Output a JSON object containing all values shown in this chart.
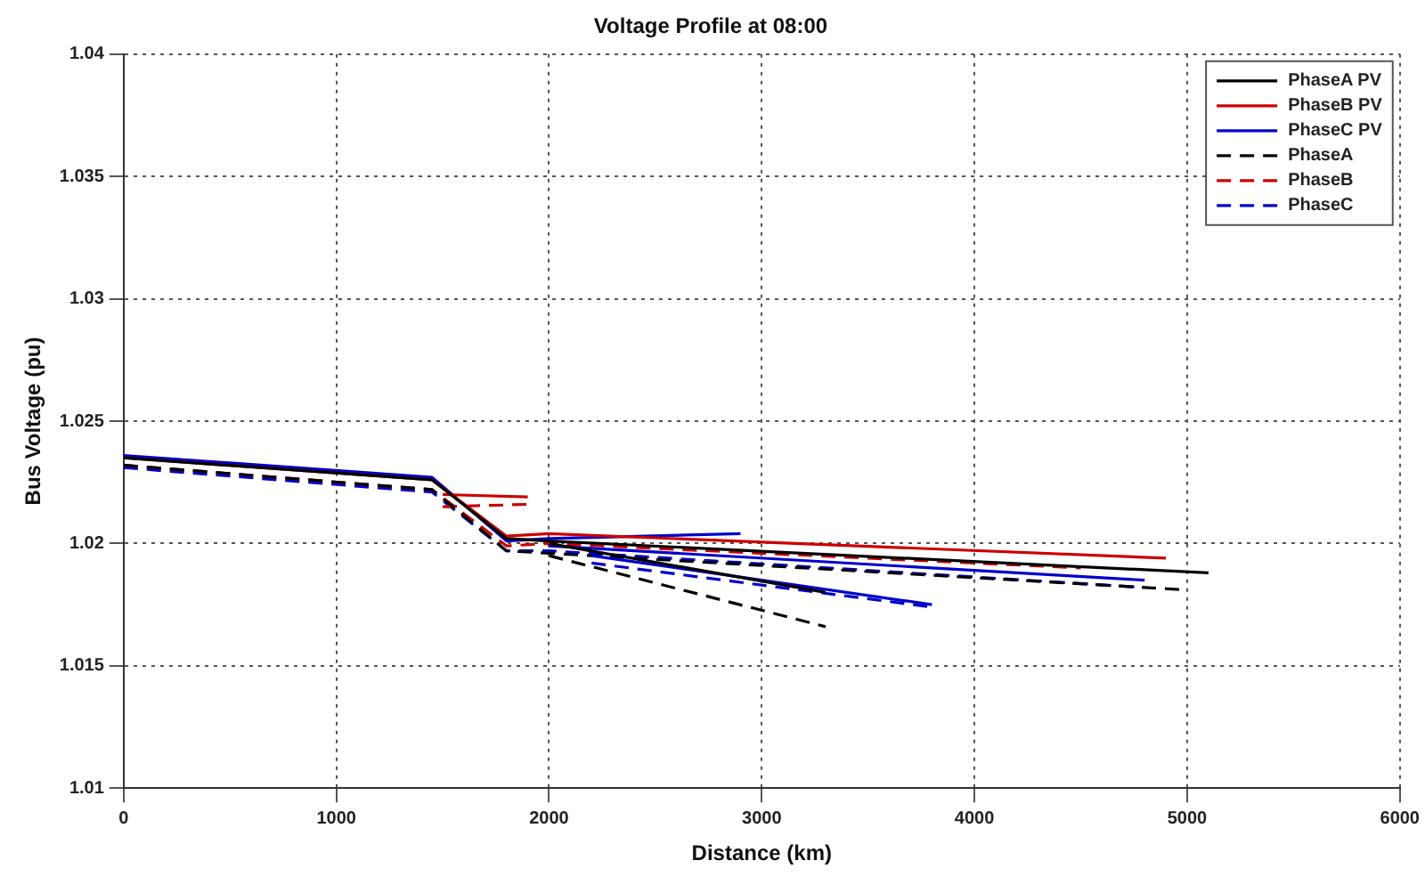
{
  "chart_data": {
    "type": "line",
    "title": "Voltage Profile at 08:00",
    "xlabel": "Distance (km)",
    "ylabel": "Bus Voltage (pu)",
    "xlim": [
      0,
      6000
    ],
    "xticks": [
      0,
      1000,
      2000,
      3000,
      4000,
      5000,
      6000
    ],
    "ylim": [
      1.01,
      1.04
    ],
    "yticks": [
      1.01,
      1.015,
      1.02,
      1.025,
      1.03,
      1.035,
      1.04
    ],
    "grid": true,
    "legend": "top right",
    "marker": "none",
    "series": [
      {
        "name": "PhaseA PV",
        "color": "#000000",
        "line_style": "solid",
        "x": [
          0,
          1450,
          1800,
          2000,
          5100,
          null,
          2000,
          3300
        ],
        "values": [
          1.0235,
          1.0226,
          1.0202,
          1.0201,
          1.0188,
          null,
          1.02,
          1.018
        ]
      },
      {
        "name": "PhaseB PV",
        "color": "#cc0000",
        "line_style": "solid",
        "x": [
          0,
          1450,
          1800,
          2000,
          4900,
          null,
          1500,
          1900
        ],
        "values": [
          1.0235,
          1.0226,
          1.0203,
          1.0204,
          1.0194,
          null,
          1.022,
          1.0219
        ]
      },
      {
        "name": "PhaseC PV",
        "color": "#0000cc",
        "line_style": "solid",
        "x": [
          0,
          1450,
          1800,
          2000,
          2900,
          null,
          2000,
          4800,
          null,
          2200,
          3800
        ],
        "values": [
          1.0236,
          1.0227,
          1.0201,
          1.0202,
          1.0204,
          null,
          1.0199,
          1.0185,
          null,
          1.0195,
          1.0175
        ]
      },
      {
        "name": "PhaseA",
        "color": "#000000",
        "line_style": "dashed",
        "x": [
          0,
          1450,
          1800,
          2000,
          5000,
          null,
          2000,
          3300
        ],
        "values": [
          1.0232,
          1.0222,
          1.0197,
          1.0196,
          1.0181,
          null,
          1.0195,
          1.0166
        ]
      },
      {
        "name": "PhaseB",
        "color": "#cc0000",
        "line_style": "dashed",
        "x": [
          0,
          1450,
          1800,
          2000,
          4500,
          null,
          1500,
          1900
        ],
        "values": [
          1.0232,
          1.0222,
          1.0199,
          1.02,
          1.019,
          null,
          1.0215,
          1.0216
        ]
      },
      {
        "name": "PhaseC",
        "color": "#0000cc",
        "line_style": "dashed",
        "x": [
          0,
          1450,
          1800,
          2000,
          4800,
          null,
          2200,
          3800
        ],
        "values": [
          1.0231,
          1.0221,
          1.0197,
          1.0197,
          1.0182,
          null,
          1.0192,
          1.0174
        ]
      }
    ]
  }
}
